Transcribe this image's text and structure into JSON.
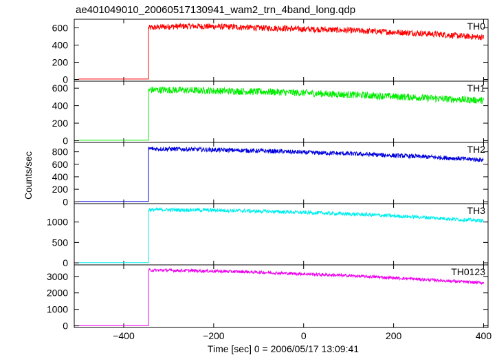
{
  "chart_data": {
    "type": "line",
    "title": "ae401049010_20060517130941_wam2_trn_4band_long.qdp",
    "xlabel": "Time [sec] 0 = 2006/05/17 13:09:41",
    "ylabel": "Counts/sec",
    "xlim": [
      -510,
      410
    ],
    "x_ticks": [
      "−400",
      "−200",
      "0",
      "200",
      "400"
    ],
    "x_tick_values": [
      -400,
      -200,
      0,
      200,
      400
    ],
    "grid": false,
    "panels": [
      {
        "name": "TH0",
        "color": "#ff0000",
        "ylim": [
          -20,
          700
        ],
        "y_ticks": [
          "0",
          "200",
          "400",
          "600"
        ],
        "y_tick_values": [
          0,
          200,
          400,
          600
        ],
        "x": [
          -500,
          -345,
          -345,
          -300,
          -250,
          -200,
          -150,
          -100,
          -50,
          0,
          50,
          100,
          150,
          200,
          250,
          300,
          350,
          400
        ],
        "values": [
          5,
          5,
          600,
          615,
          620,
          615,
          610,
          600,
          595,
          585,
          580,
          570,
          560,
          550,
          540,
          525,
          505,
          490
        ],
        "noise": 35
      },
      {
        "name": "TH1",
        "color": "#00ee00",
        "ylim": [
          -20,
          680
        ],
        "y_ticks": [
          "0",
          "200",
          "400",
          "600"
        ],
        "y_tick_values": [
          0,
          200,
          400,
          600
        ],
        "x": [
          -500,
          -345,
          -345,
          -300,
          -250,
          -200,
          -150,
          -100,
          -50,
          0,
          50,
          100,
          150,
          200,
          250,
          300,
          350,
          400
        ],
        "values": [
          5,
          5,
          580,
          580,
          575,
          570,
          565,
          560,
          555,
          545,
          535,
          525,
          515,
          505,
          495,
          480,
          470,
          460
        ],
        "noise": 40
      },
      {
        "name": "TH2",
        "color": "#0000dd",
        "ylim": [
          -30,
          950
        ],
        "y_ticks": [
          "0",
          "200",
          "400",
          "600",
          "800"
        ],
        "y_tick_values": [
          0,
          200,
          400,
          600,
          800
        ],
        "x": [
          -500,
          -345,
          -345,
          -300,
          -250,
          -200,
          -150,
          -100,
          -50,
          0,
          50,
          100,
          150,
          200,
          250,
          300,
          350,
          400
        ],
        "values": [
          5,
          5,
          850,
          845,
          840,
          830,
          825,
          815,
          805,
          790,
          780,
          770,
          755,
          740,
          725,
          710,
          690,
          670
        ],
        "noise": 35
      },
      {
        "name": "TH3",
        "color": "#00eeee",
        "ylim": [
          -50,
          1450
        ],
        "y_ticks": [
          "0",
          "500",
          "1000"
        ],
        "y_tick_values": [
          0,
          500,
          1000
        ],
        "x": [
          -500,
          -345,
          -345,
          -300,
          -250,
          -200,
          -150,
          -100,
          -50,
          0,
          50,
          100,
          150,
          200,
          250,
          300,
          350,
          400
        ],
        "values": [
          5,
          5,
          1300,
          1300,
          1295,
          1290,
          1280,
          1265,
          1250,
          1235,
          1215,
          1195,
          1175,
          1150,
          1125,
          1095,
          1060,
          1030
        ],
        "noise": 45
      },
      {
        "name": "TH0123",
        "color": "#ee00ee",
        "ylim": [
          -100,
          3700
        ],
        "y_ticks": [
          "0",
          "1000",
          "2000",
          "3000"
        ],
        "y_tick_values": [
          0,
          1000,
          2000,
          3000
        ],
        "x": [
          -500,
          -345,
          -345,
          -300,
          -250,
          -200,
          -150,
          -100,
          -50,
          0,
          50,
          100,
          150,
          200,
          250,
          300,
          350,
          400
        ],
        "values": [
          15,
          15,
          3380,
          3370,
          3350,
          3320,
          3290,
          3250,
          3200,
          3150,
          3100,
          3040,
          2980,
          2910,
          2840,
          2760,
          2680,
          2610
        ],
        "noise": 90
      }
    ]
  }
}
